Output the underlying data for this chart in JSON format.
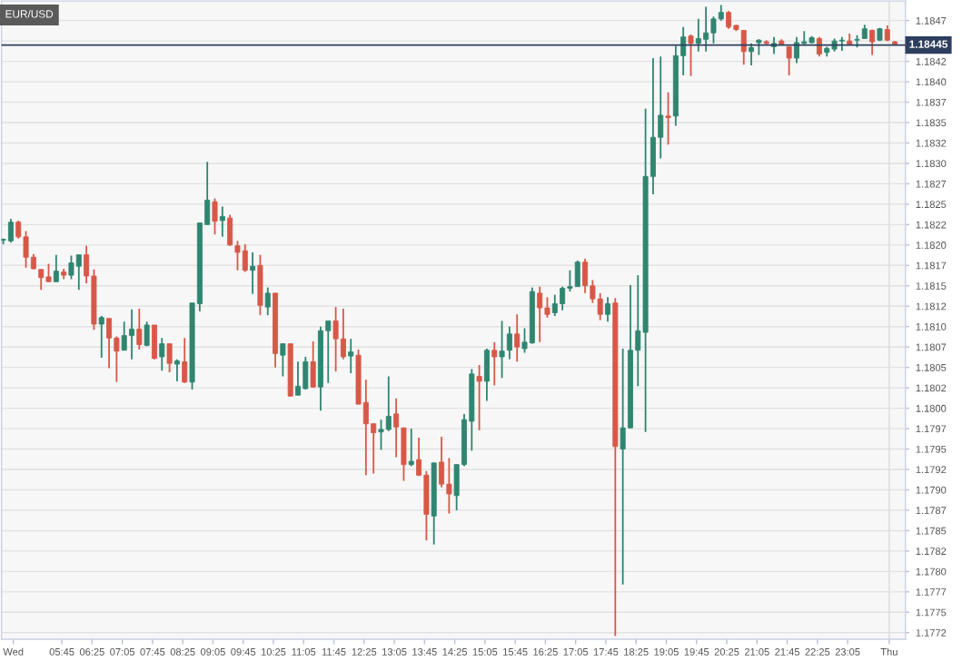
{
  "chart_data": {
    "type": "candlestick",
    "title": "EUR/USD",
    "x": [
      4.458,
      4.625,
      4.792,
      4.958,
      5.125,
      5.292,
      5.458,
      5.625,
      5.792,
      5.958,
      6.125,
      6.292,
      6.458,
      6.625,
      6.792,
      6.958,
      7.125,
      7.292,
      7.458,
      7.625,
      7.792,
      7.958,
      8.125,
      8.292,
      8.458,
      8.625,
      8.792,
      8.958,
      9.125,
      9.292,
      9.458,
      9.625,
      9.792,
      9.958,
      10.125,
      10.292,
      10.458,
      10.625,
      10.792,
      10.958,
      11.125,
      11.292,
      11.458,
      11.625,
      11.792,
      11.958,
      12.125,
      12.292,
      12.458,
      12.625,
      12.792,
      12.958,
      13.125,
      13.292,
      13.458,
      13.625,
      13.792,
      13.958,
      14.125,
      14.292,
      14.458,
      14.625,
      14.792,
      14.958,
      15.125,
      15.292,
      15.458,
      15.625,
      15.792,
      15.958,
      16.125,
      16.292,
      16.458,
      16.625,
      16.792,
      16.958,
      17.125,
      17.292,
      17.458,
      17.625,
      17.792,
      17.958,
      18.125,
      18.292,
      18.458,
      18.625,
      18.792,
      18.958,
      19.125,
      19.292,
      19.458,
      19.625,
      19.792,
      19.958,
      20.125,
      20.292,
      20.458,
      20.625,
      20.792,
      20.958,
      21.125,
      21.292,
      21.458,
      21.625,
      21.792,
      21.958,
      22.125,
      22.292,
      22.458,
      22.625,
      22.792,
      22.958,
      23.125,
      23.292,
      23.458,
      23.625,
      23.792,
      23.958,
      24.125
    ],
    "ohlc": [
      [
        1.18206,
        1.18208,
        1.18201,
        1.18207
      ],
      [
        1.18205,
        1.18232,
        1.18203,
        1.18228
      ],
      [
        1.18228,
        1.1823,
        1.18208,
        1.1821
      ],
      [
        1.1821,
        1.18217,
        1.18172,
        1.18185
      ],
      [
        1.18185,
        1.18189,
        1.1817,
        1.18171
      ],
      [
        1.1817,
        1.1817,
        1.18145,
        1.1816
      ],
      [
        1.18161,
        1.18177,
        1.18155,
        1.18155
      ],
      [
        1.18155,
        1.18188,
        1.18155,
        1.18168
      ],
      [
        1.18167,
        1.18171,
        1.18158,
        1.18163
      ],
      [
        1.18163,
        1.18187,
        1.18158,
        1.18178
      ],
      [
        1.18174,
        1.18188,
        1.18145,
        1.18188
      ],
      [
        1.18188,
        1.18199,
        1.18153,
        1.18162
      ],
      [
        1.18162,
        1.1817,
        1.18096,
        1.18103
      ],
      [
        1.18103,
        1.18113,
        1.18062,
        1.18111
      ],
      [
        1.1811,
        1.1811,
        1.18049,
        1.18086
      ],
      [
        1.18086,
        1.18088,
        1.18032,
        1.1807
      ],
      [
        1.18071,
        1.18106,
        1.18071,
        1.18089
      ],
      [
        1.18089,
        1.18121,
        1.1806,
        1.18097
      ],
      [
        1.18097,
        1.18122,
        1.18072,
        1.18078
      ],
      [
        1.18077,
        1.18106,
        1.18076,
        1.18102
      ],
      [
        1.18102,
        1.18102,
        1.1806,
        1.18061
      ],
      [
        1.18063,
        1.18086,
        1.18046,
        1.18079
      ],
      [
        1.18079,
        1.18079,
        1.18044,
        1.18055
      ],
      [
        1.18054,
        1.1806,
        1.18033,
        1.18058
      ],
      [
        1.18057,
        1.18086,
        1.18031,
        1.18032
      ],
      [
        1.18032,
        1.18129,
        1.18023,
        1.18129
      ],
      [
        1.18128,
        1.18227,
        1.18119,
        1.18227
      ],
      [
        1.18225,
        1.18302,
        1.18225,
        1.18255
      ],
      [
        1.18253,
        1.18257,
        1.18213,
        1.18229
      ],
      [
        1.1823,
        1.18247,
        1.1821,
        1.18235
      ],
      [
        1.18233,
        1.18237,
        1.18199,
        1.182
      ],
      [
        1.18199,
        1.18205,
        1.18169,
        1.18191
      ],
      [
        1.18193,
        1.18201,
        1.18167,
        1.18169
      ],
      [
        1.18169,
        1.18191,
        1.1814,
        1.18174
      ],
      [
        1.18175,
        1.18188,
        1.18114,
        1.18126
      ],
      [
        1.18124,
        1.18148,
        1.18114,
        1.18141
      ],
      [
        1.18141,
        1.18141,
        1.1805,
        1.18067
      ],
      [
        1.18065,
        1.18079,
        1.18039,
        1.18079
      ],
      [
        1.18079,
        1.18079,
        1.18014,
        1.18015
      ],
      [
        1.18016,
        1.18057,
        1.18016,
        1.18027
      ],
      [
        1.18024,
        1.18063,
        1.18023,
        1.18057
      ],
      [
        1.18057,
        1.18082,
        1.18025,
        1.18026
      ],
      [
        1.18026,
        1.181,
        1.17997,
        1.18095
      ],
      [
        1.18095,
        1.18107,
        1.18031,
        1.18107
      ],
      [
        1.18107,
        1.18124,
        1.18045,
        1.18085
      ],
      [
        1.18085,
        1.18122,
        1.1806,
        1.18063
      ],
      [
        1.18064,
        1.18085,
        1.18043,
        1.18069
      ],
      [
        1.18065,
        1.18072,
        1.18005,
        1.18005
      ],
      [
        1.18007,
        1.18035,
        1.17918,
        1.17981
      ],
      [
        1.17981,
        1.17981,
        1.1792,
        1.1797
      ],
      [
        1.17971,
        1.17986,
        1.17949,
        1.17974
      ],
      [
        1.17974,
        1.18039,
        1.17972,
        1.1799
      ],
      [
        1.17993,
        1.18012,
        1.1794,
        1.17977
      ],
      [
        1.17976,
        1.17976,
        1.17911,
        1.17931
      ],
      [
        1.17931,
        1.17975,
        1.17929,
        1.17935
      ],
      [
        1.17937,
        1.17964,
        1.17917,
        1.17918
      ],
      [
        1.17918,
        1.17923,
        1.17838,
        1.1787
      ],
      [
        1.17868,
        1.17933,
        1.17833,
        1.17933
      ],
      [
        1.17934,
        1.17965,
        1.17903,
        1.17907
      ],
      [
        1.17907,
        1.17939,
        1.17871,
        1.17895
      ],
      [
        1.17893,
        1.17931,
        1.17875,
        1.17931
      ],
      [
        1.17931,
        1.17993,
        1.17929,
        1.17986
      ],
      [
        1.17984,
        1.18048,
        1.17948,
        1.18042
      ],
      [
        1.18039,
        1.18053,
        1.17973,
        1.18033
      ],
      [
        1.18033,
        1.18073,
        1.18009,
        1.18071
      ],
      [
        1.18071,
        1.18081,
        1.18028,
        1.18063
      ],
      [
        1.18063,
        1.18107,
        1.18037,
        1.1807
      ],
      [
        1.18071,
        1.181,
        1.1806,
        1.18091
      ],
      [
        1.18091,
        1.18115,
        1.18057,
        1.18075
      ],
      [
        1.18073,
        1.18098,
        1.18068,
        1.18081
      ],
      [
        1.1808,
        1.18148,
        1.18079,
        1.18143
      ],
      [
        1.18141,
        1.18149,
        1.18081,
        1.18123
      ],
      [
        1.18123,
        1.18136,
        1.18111,
        1.18115
      ],
      [
        1.18117,
        1.18139,
        1.18113,
        1.18128
      ],
      [
        1.18128,
        1.18149,
        1.1812,
        1.18147
      ],
      [
        1.18147,
        1.18169,
        1.18143,
        1.18149
      ],
      [
        1.18149,
        1.18181,
        1.18149,
        1.18179
      ],
      [
        1.18179,
        1.18183,
        1.18141,
        1.1815
      ],
      [
        1.1815,
        1.18157,
        1.18129,
        1.18134
      ],
      [
        1.18134,
        1.18141,
        1.18108,
        1.18115
      ],
      [
        1.18115,
        1.18136,
        1.18106,
        1.18128
      ],
      [
        1.18129,
        1.18135,
        1.17721,
        1.17953
      ],
      [
        1.1795,
        1.18073,
        1.17784,
        1.17976
      ],
      [
        1.17976,
        1.18151,
        1.17975,
        1.18071
      ],
      [
        1.18071,
        1.18163,
        1.18027,
        1.18095
      ],
      [
        1.18093,
        1.18367,
        1.17971,
        1.18284
      ],
      [
        1.18284,
        1.18429,
        1.18262,
        1.18332
      ],
      [
        1.18332,
        1.18431,
        1.18306,
        1.18359
      ],
      [
        1.18358,
        1.18387,
        1.18323,
        1.18356
      ],
      [
        1.18358,
        1.18444,
        1.18346,
        1.18432
      ],
      [
        1.18432,
        1.18467,
        1.18408,
        1.18455
      ],
      [
        1.18456,
        1.18458,
        1.18407,
        1.18447
      ],
      [
        1.18447,
        1.18477,
        1.18437,
        1.18453
      ],
      [
        1.18452,
        1.18492,
        1.18437,
        1.1846
      ],
      [
        1.1846,
        1.1848,
        1.18447,
        1.18477
      ],
      [
        1.18477,
        1.18494,
        1.18475,
        1.18485
      ],
      [
        1.18485,
        1.18487,
        1.18465,
        1.18467
      ],
      [
        1.18469,
        1.1847,
        1.18462,
        1.18464
      ],
      [
        1.18463,
        1.18463,
        1.18421,
        1.18437
      ],
      [
        1.18437,
        1.18447,
        1.1842,
        1.18442
      ],
      [
        1.18448,
        1.18452,
        1.18433,
        1.18451
      ],
      [
        1.18449,
        1.18451,
        1.18446,
        1.18447
      ],
      [
        1.18443,
        1.18455,
        1.18434,
        1.18447
      ],
      [
        1.1845,
        1.18452,
        1.18445,
        1.18446
      ],
      [
        1.18443,
        1.18443,
        1.18408,
        1.18429
      ],
      [
        1.18429,
        1.18455,
        1.18423,
        1.18448
      ],
      [
        1.18447,
        1.18462,
        1.18446,
        1.18449
      ],
      [
        1.18448,
        1.18456,
        1.18447,
        1.18454
      ],
      [
        1.18453,
        1.18455,
        1.18431,
        1.18434
      ],
      [
        1.18436,
        1.18443,
        1.18431,
        1.18441
      ],
      [
        1.1844,
        1.18453,
        1.18437,
        1.1845
      ],
      [
        1.1845,
        1.18455,
        1.18438,
        1.18451
      ],
      [
        1.1845,
        1.18459,
        1.18445,
        1.18446
      ],
      [
        1.18451,
        1.18457,
        1.18442,
        1.18452
      ],
      [
        1.18453,
        1.1847,
        1.18453,
        1.18465
      ],
      [
        1.18463,
        1.18464,
        1.18433,
        1.18449
      ],
      [
        1.18451,
        1.18466,
        1.1845,
        1.18465
      ],
      [
        1.18464,
        1.18469,
        1.1845,
        1.18451
      ],
      [
        1.18449,
        1.1845,
        1.18446,
        1.18446
      ]
    ],
    "colors": [
      "#2f8570",
      "#2f8570",
      "#d85848",
      "#d85848",
      "#d85848",
      "#d85848",
      "#d85848",
      "#2f8570",
      "#d85848",
      "#2f8570",
      "#2f8570",
      "#d85848",
      "#d85848",
      "#2f8570",
      "#d85848",
      "#d85848",
      "#2f8570",
      "#2f8570",
      "#d85848",
      "#2f8570",
      "#d85848",
      "#2f8570",
      "#d85848",
      "#2f8570",
      "#d85848",
      "#2f8570",
      "#2f8570",
      "#2f8570",
      "#d85848",
      "#2f8570",
      "#d85848",
      "#d85848",
      "#d85848",
      "#2f8570",
      "#d85848",
      "#2f8570",
      "#d85848",
      "#2f8570",
      "#d85848",
      "#2f8570",
      "#2f8570",
      "#d85848",
      "#2f8570",
      "#2f8570",
      "#d85848",
      "#d85848",
      "#2f8570",
      "#d85848",
      "#d85848",
      "#d85848",
      "#2f8570",
      "#2f8570",
      "#d85848",
      "#d85848",
      "#2f8570",
      "#d85848",
      "#d85848",
      "#2f8570",
      "#d85848",
      "#d85848",
      "#2f8570",
      "#2f8570",
      "#2f8570",
      "#d85848",
      "#2f8570",
      "#d85848",
      "#2f8570",
      "#2f8570",
      "#d85848",
      "#2f8570",
      "#2f8570",
      "#d85848",
      "#d85848",
      "#2f8570",
      "#2f8570",
      "#2f8570",
      "#2f8570",
      "#d85848",
      "#d85848",
      "#d85848",
      "#2f8570",
      "#d85848",
      "#2f8570",
      "#2f8570",
      "#2f8570",
      "#2f8570",
      "#2f8570",
      "#2f8570",
      "#d85848",
      "#2f8570",
      "#2f8570",
      "#d85848",
      "#2f8570",
      "#2f8570",
      "#2f8570",
      "#2f8570",
      "#d85848",
      "#d85848",
      "#d85848",
      "#2f8570",
      "#2f8570",
      "#d85848",
      "#2f8570",
      "#d85848",
      "#d85848",
      "#2f8570",
      "#2f8570",
      "#2f8570",
      "#d85848",
      "#2f8570",
      "#2f8570",
      "#2f8570",
      "#d85848",
      "#2f8570",
      "#2f8570",
      "#d85848",
      "#2f8570",
      "#d85848",
      "#d85848"
    ],
    "xlim": [
      4.418,
      24.358
    ],
    "xticks": [
      {
        "value": 4.68,
        "label": "Wed"
      },
      {
        "value": 5.75,
        "label": "05:45"
      },
      {
        "value": 6.4167,
        "label": "06:25"
      },
      {
        "value": 7.0833,
        "label": "07:05"
      },
      {
        "value": 7.75,
        "label": "07:45"
      },
      {
        "value": 8.4167,
        "label": "08:25"
      },
      {
        "value": 9.0833,
        "label": "09:05"
      },
      {
        "value": 9.75,
        "label": "09:45"
      },
      {
        "value": 10.4167,
        "label": "10:25"
      },
      {
        "value": 11.0833,
        "label": "11:05"
      },
      {
        "value": 11.75,
        "label": "11:45"
      },
      {
        "value": 12.4167,
        "label": "12:25"
      },
      {
        "value": 13.0833,
        "label": "13:05"
      },
      {
        "value": 13.75,
        "label": "13:45"
      },
      {
        "value": 14.4167,
        "label": "14:25"
      },
      {
        "value": 15.0833,
        "label": "15:05"
      },
      {
        "value": 15.75,
        "label": "15:45"
      },
      {
        "value": 16.4167,
        "label": "16:25"
      },
      {
        "value": 17.0833,
        "label": "17:05"
      },
      {
        "value": 17.75,
        "label": "17:45"
      },
      {
        "value": 18.4167,
        "label": "18:25"
      },
      {
        "value": 19.0833,
        "label": "19:05"
      },
      {
        "value": 19.75,
        "label": "19:45"
      },
      {
        "value": 20.4167,
        "label": "20:25"
      },
      {
        "value": 21.0833,
        "label": "21:05"
      },
      {
        "value": 21.75,
        "label": "21:45"
      },
      {
        "value": 22.4167,
        "label": "22:25"
      },
      {
        "value": 23.0833,
        "label": "23:05"
      },
      {
        "value": 24,
        "label": "Thu"
      }
    ],
    "ylim": [
      1.17717,
      1.18499
    ],
    "yticks": [
      {
        "value": 1.17725,
        "label": "1.1772"
      },
      1.1775,
      {
        "value": 1.17775,
        "label": "1.1777"
      },
      {
        "value": 1.178,
        "label": "1.1780"
      },
      {
        "value": 1.17825,
        "label": "1.1782"
      },
      1.1785,
      {
        "value": 1.17875,
        "label": "1.1787"
      },
      {
        "value": 1.179,
        "label": "1.1790"
      },
      {
        "value": 1.17925,
        "label": "1.1792"
      },
      1.1795,
      {
        "value": 1.17975,
        "label": "1.1797"
      },
      {
        "value": 1.18,
        "label": "1.1800"
      },
      {
        "value": 1.18025,
        "label": "1.1802"
      },
      1.1805,
      {
        "value": 1.18075,
        "label": "1.1807"
      },
      {
        "value": 1.181,
        "label": "1.1810"
      },
      {
        "value": 1.18125,
        "label": "1.1812"
      },
      1.1815,
      {
        "value": 1.18175,
        "label": "1.1817"
      },
      {
        "value": 1.182,
        "label": "1.1820"
      },
      {
        "value": 1.18225,
        "label": "1.1822"
      },
      1.1825,
      {
        "value": 1.18275,
        "label": "1.1827"
      },
      {
        "value": 1.183,
        "label": "1.1830"
      },
      {
        "value": 1.18325,
        "label": "1.1832"
      },
      1.1835,
      {
        "value": 1.18375,
        "label": "1.1837"
      },
      {
        "value": 1.184,
        "label": "1.1840"
      },
      {
        "value": 1.18425,
        "label": "1.1842"
      },
      {
        "value": 1.1845,
        "label": null
      },
      {
        "value": 1.18475,
        "label": "1.1847"
      }
    ],
    "grid": "y",
    "ref_lines": [
      {
        "axis": "y",
        "value": 1.18445,
        "label": "1.18445",
        "color": "#2d3e5e"
      },
      {
        "axis": "x",
        "value": 24,
        "color": "#dedede"
      }
    ]
  }
}
